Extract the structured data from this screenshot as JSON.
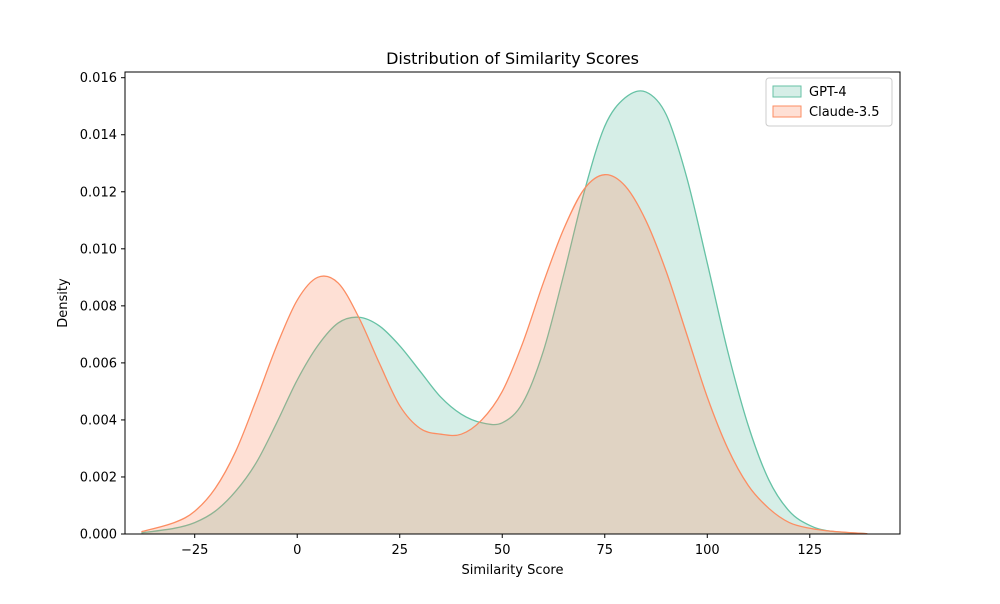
{
  "chart_data": {
    "type": "area",
    "title": "Distribution of Similarity Scores",
    "xlabel": "Similarity Score",
    "ylabel": "Density",
    "xlim": [
      -42,
      147
    ],
    "ylim": [
      0,
      0.0162
    ],
    "xticks": [
      -25,
      0,
      25,
      50,
      75,
      100,
      125
    ],
    "yticks": [
      0.0,
      0.002,
      0.004,
      0.006,
      0.008,
      0.01,
      0.012,
      0.014,
      0.016
    ],
    "xtick_labels": [
      "−25",
      "0",
      "25",
      "50",
      "75",
      "100",
      "125"
    ],
    "ytick_labels": [
      "0.000",
      "0.002",
      "0.004",
      "0.006",
      "0.008",
      "0.010",
      "0.012",
      "0.014",
      "0.016"
    ],
    "grid": false,
    "legend_position": "top-right",
    "x": [
      -38,
      -30,
      -25,
      -20,
      -15,
      -10,
      -5,
      0,
      5,
      10,
      15,
      20,
      25,
      30,
      35,
      40,
      45,
      50,
      55,
      60,
      65,
      70,
      75,
      80,
      85,
      90,
      95,
      100,
      105,
      110,
      115,
      120,
      125,
      130,
      139
    ],
    "series": [
      {
        "name": "GPT-4",
        "color": "#66c2a5",
        "fill": "rgba(102,194,165,0.27)",
        "values": [
          4e-05,
          0.0002,
          0.0004,
          0.0008,
          0.0015,
          0.0025,
          0.0039,
          0.0054,
          0.0066,
          0.0074,
          0.0076,
          0.0073,
          0.0066,
          0.0057,
          0.0048,
          0.0042,
          0.0039,
          0.0039,
          0.0046,
          0.0064,
          0.0091,
          0.012,
          0.0143,
          0.0153,
          0.0155,
          0.0147,
          0.0125,
          0.0095,
          0.0064,
          0.0038,
          0.0019,
          0.0008,
          0.0003,
          0.0001,
          1e-05
        ]
      },
      {
        "name": "Claude-3.5",
        "color": "#fc8d62",
        "fill": "rgba(252,141,98,0.27)",
        "values": [
          8e-05,
          0.0004,
          0.0008,
          0.0016,
          0.0029,
          0.0047,
          0.0066,
          0.0082,
          0.009,
          0.0088,
          0.0076,
          0.006,
          0.0045,
          0.0037,
          0.0035,
          0.0035,
          0.004,
          0.005,
          0.0067,
          0.0088,
          0.0107,
          0.0121,
          0.0126,
          0.0122,
          0.011,
          0.0092,
          0.007,
          0.0048,
          0.003,
          0.0017,
          0.0009,
          0.0004,
          0.0002,
          0.0001,
          1e-05
        ]
      }
    ]
  }
}
